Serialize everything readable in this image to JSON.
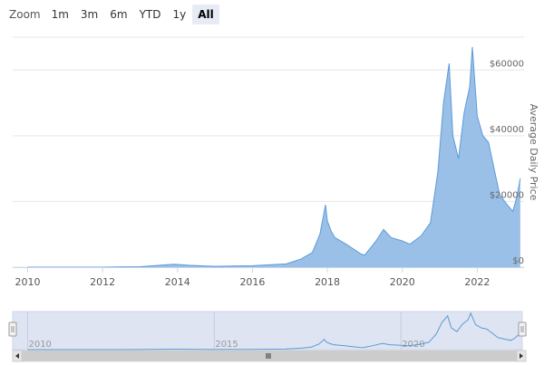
{
  "zoom": {
    "label": "Zoom",
    "buttons": [
      "1m",
      "3m",
      "6m",
      "YTD",
      "1y",
      "All"
    ],
    "selected": "All"
  },
  "colors": {
    "area_fill": "#8fb9e6",
    "line": "#5b9bd8",
    "grid": "#e6e6e6",
    "navigator_mask": "#d6ddef"
  },
  "chart_data": {
    "type": "area",
    "title": "",
    "ylabel": "Average Daily Price",
    "xlim": [
      2009.6,
      2023.25
    ],
    "ylim": [
      0,
      70000
    ],
    "x_ticks": [
      "2010",
      "2012",
      "2014",
      "2016",
      "2018",
      "2020",
      "2022"
    ],
    "y_ticks": [
      "$0",
      "$20000",
      "$40000",
      "$60000"
    ],
    "navigator_ticks": [
      "2010",
      "2015",
      "2020"
    ],
    "grid": true,
    "series": [
      {
        "x": [
          2010.0,
          2011.0,
          2012.0,
          2013.0,
          2013.9,
          2014.05,
          2014.3,
          2015.0,
          2016.0,
          2016.9,
          2017.3,
          2017.6,
          2017.8,
          2017.95,
          2018.0,
          2018.1,
          2018.2,
          2018.5,
          2018.9,
          2019.0,
          2019.3,
          2019.5,
          2019.7,
          2020.0,
          2020.2,
          2020.5,
          2020.75,
          2020.95,
          2021.1,
          2021.25,
          2021.35,
          2021.5,
          2021.65,
          2021.8,
          2021.87,
          2022.0,
          2022.15,
          2022.3,
          2022.45,
          2022.6,
          2022.8,
          2022.95,
          2023.05,
          2023.15
        ],
        "y": [
          0,
          0,
          10,
          150,
          900,
          800,
          600,
          250,
          450,
          1000,
          2500,
          4500,
          10000,
          19000,
          14000,
          11000,
          9000,
          7000,
          4000,
          3700,
          8000,
          11500,
          9000,
          8000,
          7000,
          9500,
          13500,
          29000,
          50000,
          62000,
          40000,
          33000,
          47000,
          55000,
          67000,
          46000,
          40000,
          38000,
          30000,
          22000,
          19000,
          17000,
          21000,
          27000
        ]
      }
    ]
  }
}
